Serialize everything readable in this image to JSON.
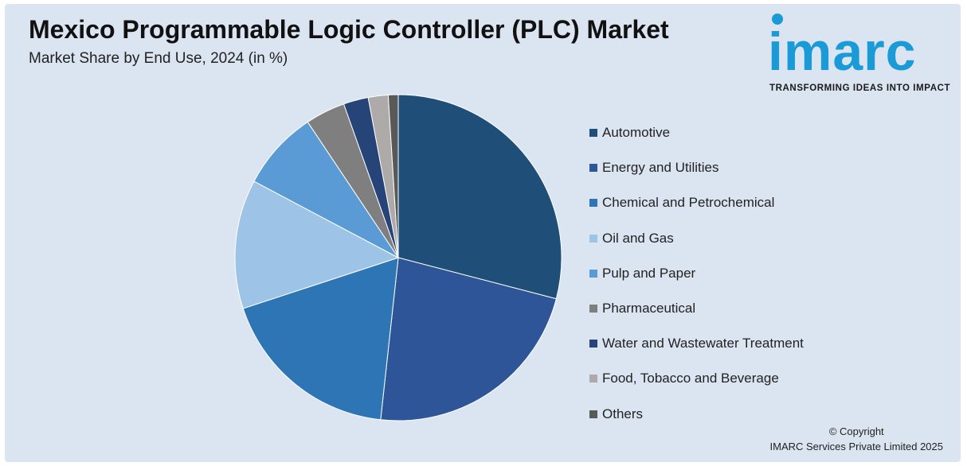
{
  "header": {
    "title": "Mexico Programmable Logic Controller (PLC) Market",
    "subtitle": "Market Share by End Use, 2024 (in %)"
  },
  "brand": {
    "logo_word": "imarc",
    "tagline": "TRANSFORMING IDEAS INTO IMPACT",
    "color": "#1a9ad6"
  },
  "chart_data": {
    "type": "pie",
    "title": "Mexico Programmable Logic Controller (PLC) Market",
    "subtitle": "Market Share by End Use, 2024 (in %)",
    "legend_position": "right",
    "slices": [
      {
        "label": "Automotive",
        "value": 29.5,
        "color": "#1f4e79"
      },
      {
        "label": "Energy and Utilities",
        "value": 23.0,
        "color": "#2e5597"
      },
      {
        "label": "Chemical and Petrochemical",
        "value": 18.5,
        "color": "#2e75b6"
      },
      {
        "label": "Oil and Gas",
        "value": 13.0,
        "color": "#9dc3e6"
      },
      {
        "label": "Pulp and Paper",
        "value": 8.0,
        "color": "#5b9bd5"
      },
      {
        "label": "Pharmaceutical",
        "value": 4.0,
        "color": "#7f7f7f"
      },
      {
        "label": "Water and Wastewater Treatment",
        "value": 2.5,
        "color": "#264478"
      },
      {
        "label": "Food, Tobacco and Beverage",
        "value": 2.0,
        "color": "#aeaaaa"
      },
      {
        "label": "Others",
        "value": 1.0,
        "color": "#595959"
      }
    ]
  },
  "footer": {
    "copyright_line1": "© Copyright",
    "copyright_line2": "IMARC Services Private Limited 2025"
  }
}
